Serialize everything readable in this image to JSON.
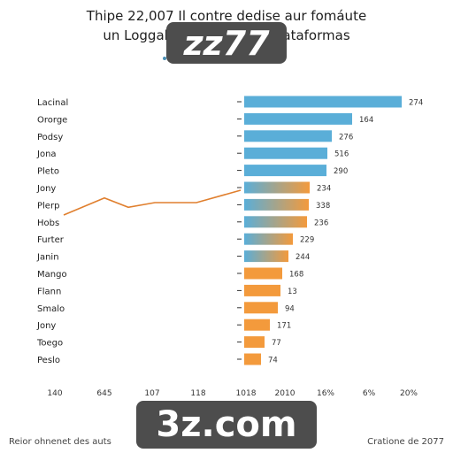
{
  "title_lines": [
    "Thipe 22,007 Il contre dedise aur fomáute",
    "un Loggal",
    "ataformas"
  ],
  "watermarks": [
    "zz77",
    "3z.com"
  ],
  "footer": {
    "left": "Reior ohnenet des auts",
    "right": "Cratione de 2077"
  },
  "chart_data": {
    "type": "bar",
    "orientation": "horizontal",
    "categories": [
      "Lacinal",
      "Ororge",
      "Podsy",
      "Jona",
      "Pleto",
      "Jony",
      "Plerp",
      "Hobs",
      "Furter",
      "Janin",
      "Mango",
      "Flann",
      "Smalo",
      "Jony",
      "Toego",
      "Peslo"
    ],
    "values": [
      274,
      164,
      276,
      516,
      290,
      234,
      338,
      236,
      229,
      244,
      168,
      13,
      94,
      171,
      77,
      74
    ],
    "bar_lengths": [
      178,
      122,
      99,
      94,
      93,
      74,
      73,
      71,
      55,
      50,
      43,
      41,
      38,
      29,
      23,
      19
    ],
    "x_tick_labels": [
      "1018",
      "2010",
      "16%",
      "6%",
      "20%"
    ],
    "line_series": {
      "x_tick_labels": [
        "140",
        "645",
        "107",
        "118"
      ],
      "y": [
        0.2,
        0.75,
        0.45,
        0.6,
        0.6,
        1.0
      ]
    },
    "colors": {
      "blue": "#5aaed8",
      "orange": "#f39a3c",
      "line": "#e07f2e",
      "axis": "#333333"
    },
    "grid": false,
    "legend": "none"
  }
}
